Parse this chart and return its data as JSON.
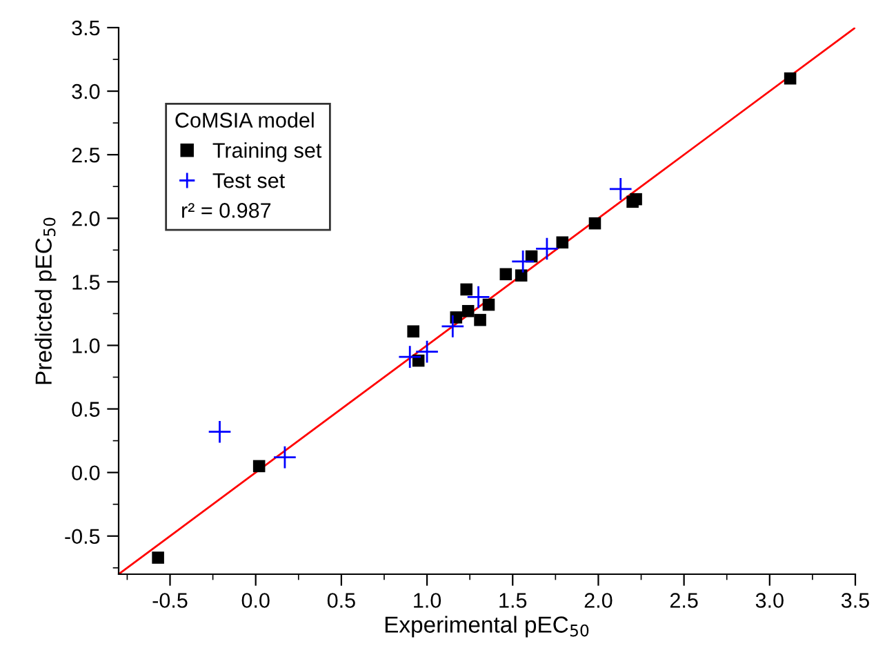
{
  "chart_data": {
    "type": "scatter",
    "xlabel": "Experimental pEC$_{50}$",
    "ylabel": "Predicted pEC$_{50}$",
    "legend_title": "CoMSIA model",
    "annotations": [
      "r² = 0.987"
    ],
    "series": [
      {
        "name": "Training set",
        "color": "#000000",
        "marker": "square",
        "x": [
          -0.57,
          0.02,
          3.12,
          2.22,
          2.2,
          1.98,
          1.79,
          1.61,
          1.46,
          1.55,
          1.23,
          1.36,
          1.24,
          1.17,
          1.31,
          0.92,
          0.95
        ],
        "values": [
          -0.67,
          0.05,
          3.1,
          2.15,
          2.13,
          1.96,
          1.81,
          1.7,
          1.56,
          1.55,
          1.44,
          1.32,
          1.27,
          1.22,
          1.2,
          1.11,
          0.88
        ]
      },
      {
        "name": "Test set",
        "color": "#0000ff",
        "marker": "cross",
        "x": [
          -0.21,
          0.17,
          2.13,
          1.7,
          1.56,
          1.3,
          1.15,
          1.0,
          0.9
        ],
        "values": [
          0.32,
          0.12,
          2.23,
          1.76,
          1.66,
          1.38,
          1.15,
          0.95,
          0.91
        ]
      },
      {
        "type": "line",
        "color": "#ff0000",
        "marker": "none",
        "x": [
          -0.8,
          3.5
        ],
        "values": [
          -0.8,
          3.5
        ]
      }
    ],
    "xlim": [
      -0.8,
      3.5
    ],
    "ylim": [
      -0.8,
      3.5
    ],
    "xticks": [
      {
        "value": -0.5,
        "label": "-0.5"
      },
      {
        "value": 0,
        "label": "0.0"
      },
      0.5,
      {
        "value": 1,
        "label": "1.0"
      },
      1.5,
      {
        "value": 2,
        "label": "2.0"
      },
      2.5,
      {
        "value": 3,
        "label": "3.0"
      },
      3.5
    ],
    "yticks": [
      {
        "value": -0.5,
        "label": "-0.5"
      },
      {
        "value": 0,
        "label": "0.0"
      },
      0.5,
      {
        "value": 1,
        "label": "1.0"
      },
      1.5,
      {
        "value": 2,
        "label": "2.0"
      },
      2.5,
      {
        "value": 3,
        "label": "3.0"
      },
      3.5
    ],
    "grid": false,
    "legend": "top left"
  }
}
